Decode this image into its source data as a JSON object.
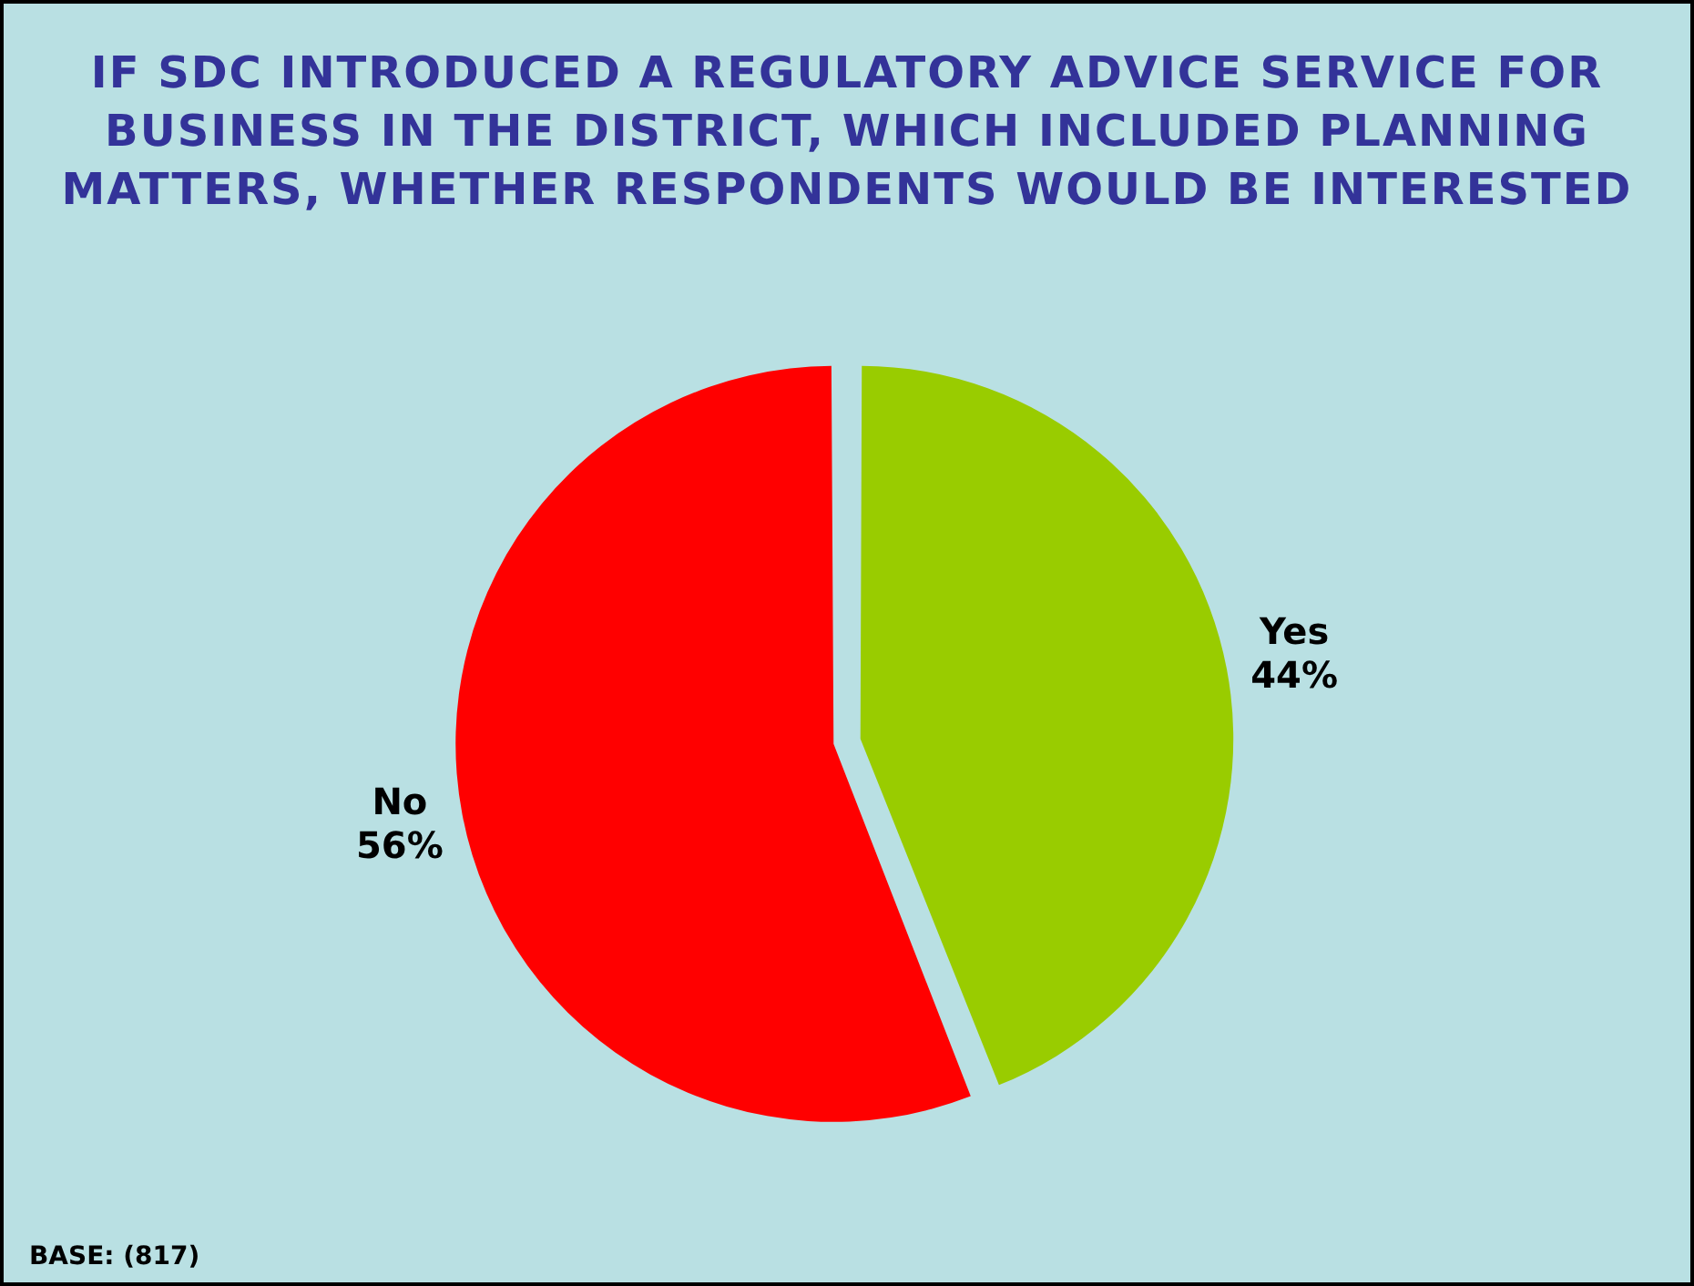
{
  "chart_data": {
    "type": "pie",
    "title": "IF SDC INTRODUCED A REGULATORY ADVICE SERVICE FOR BUSINESS IN THE DISTRICT, WHICH INCLUDED PLANNING MATTERS, WHETHER RESPONDENTS WOULD BE INTERESTED",
    "categories": [
      "Yes",
      "No"
    ],
    "values": [
      44,
      56
    ],
    "colors": [
      "#99cc00",
      "#ff0000"
    ],
    "value_labels": [
      "44%",
      "56%"
    ],
    "legend": false,
    "annotations": [
      "BASE: (817)"
    ]
  }
}
